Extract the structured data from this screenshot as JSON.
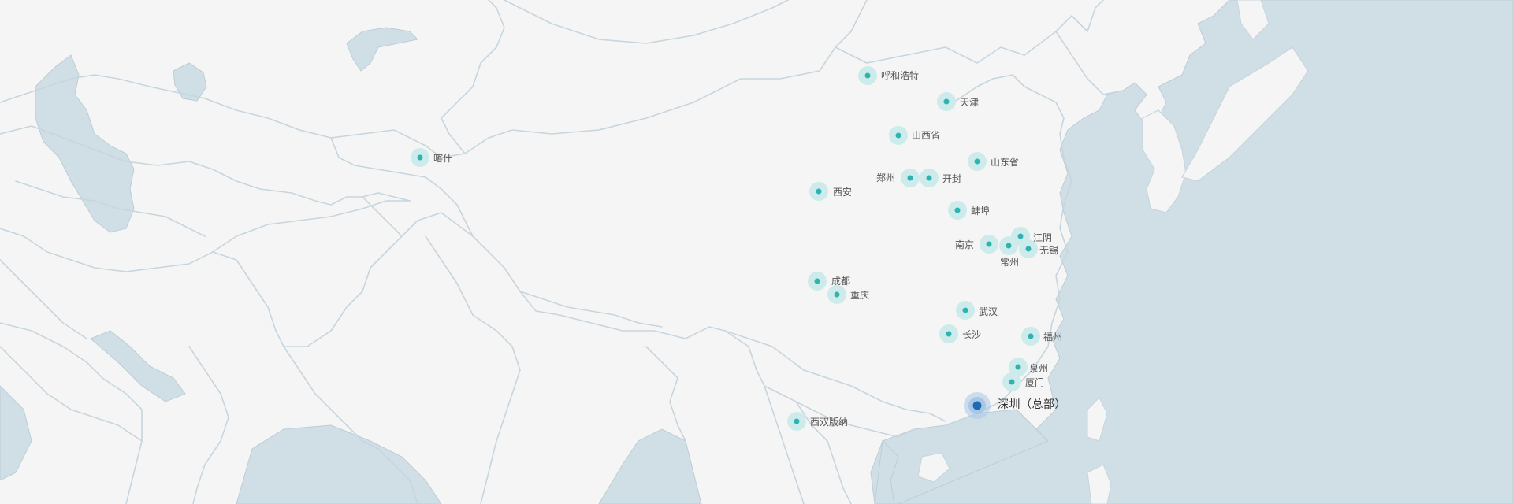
{
  "map": {
    "colors": {
      "background": "#f5f5f5",
      "water": "#d0dfe5",
      "border": "#c7d5de",
      "city_halo": "#cdebeb",
      "city_dot": "#2fb3b1",
      "hq_halo": "#aac6e6",
      "hq_dot": "#1e6ab5"
    },
    "headquarters": {
      "label": "深圳（总部）"
    },
    "cities": [
      {
        "key": "huhehaote",
        "label": "呼和浩特"
      },
      {
        "key": "tianjin",
        "label": "天津"
      },
      {
        "key": "shanxi",
        "label": "山西省"
      },
      {
        "key": "kashi",
        "label": "喀什"
      },
      {
        "key": "shandong",
        "label": "山东省"
      },
      {
        "key": "zhengzhou",
        "label": "郑州"
      },
      {
        "key": "kaifeng",
        "label": "开封"
      },
      {
        "key": "xian",
        "label": "西安"
      },
      {
        "key": "bengbu",
        "label": "蚌埠"
      },
      {
        "key": "jiangyin",
        "label": "江阴"
      },
      {
        "key": "nanjing",
        "label": "南京"
      },
      {
        "key": "wuxi",
        "label": "无锡"
      },
      {
        "key": "changzhou",
        "label": "常州"
      },
      {
        "key": "chengdu",
        "label": "成都"
      },
      {
        "key": "chongqing",
        "label": "重庆"
      },
      {
        "key": "wuhan",
        "label": "武汉"
      },
      {
        "key": "changsha",
        "label": "长沙"
      },
      {
        "key": "fuzhou",
        "label": "福州"
      },
      {
        "key": "quanzhou",
        "label": "泉州"
      },
      {
        "key": "xiamen",
        "label": "厦门"
      },
      {
        "key": "xishuangbanna",
        "label": "西双版纳"
      }
    ]
  }
}
